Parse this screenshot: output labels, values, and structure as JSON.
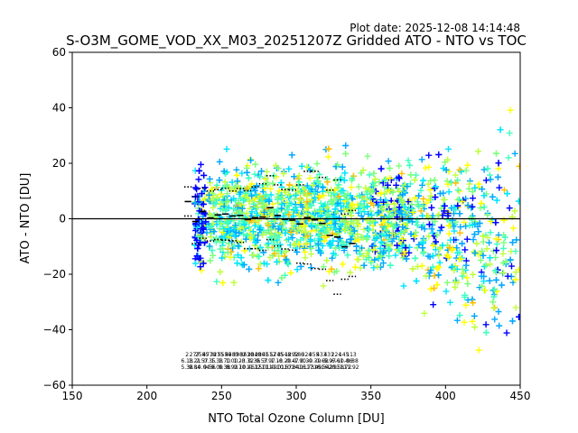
{
  "plot_date": "Plot date: 2025-12-08 14:14:48",
  "chart_data": {
    "type": "scatter",
    "title": "S-O3M_GOME_VOD_XX_M03_20251207Z Gridded ATO - NTO vs TOC",
    "xlabel": "NTO Total Ozone Column [DU]",
    "ylabel": "ATO - NTO [DU]",
    "xlim": [
      150,
      450
    ],
    "ylim": [
      -60,
      60
    ],
    "xticks": [
      150,
      200,
      250,
      300,
      350,
      400,
      450
    ],
    "yticks": [
      -60,
      -40,
      -20,
      0,
      20,
      40,
      60
    ],
    "zero_line": 0,
    "marker": "+",
    "colors": [
      "#0000ff",
      "#00a8ff",
      "#00e5ff",
      "#40ffc0",
      "#7dff7a",
      "#c0ff40",
      "#ffff00",
      "#ffc000"
    ],
    "bins": [
      {
        "x": 227.5,
        "count": "2",
        "mean": "6.18",
        "std": "5.38",
        "median": 6.2,
        "p_hi": 11.5,
        "p_lo": 1.0
      },
      {
        "x": 232.5,
        "count": "277",
        "mean": "1.21",
        "std": "9.84",
        "median": -1.0,
        "p_hi": 8.0,
        "p_lo": -9.0
      },
      {
        "x": 237.5,
        "count": "2585",
        "mean": "2.57",
        "std": "10.04",
        "median": 2.6,
        "p_hi": 11.0,
        "p_lo": -7.0
      },
      {
        "x": 242.5,
        "count": "4778",
        "mean": "0.35",
        "std": "9.56",
        "median": 0.3,
        "p_hi": 10.0,
        "p_lo": -8.0
      },
      {
        "x": 247.5,
        "count": "3275",
        "mean": "1.38",
        "std": "9.09",
        "median": 1.4,
        "p_hi": 10.5,
        "p_lo": -7.5
      },
      {
        "x": 252.5,
        "count": "5559",
        "mean": "1.70",
        "std": "9.38",
        "median": 1.7,
        "p_hi": 11.0,
        "p_lo": -7.7
      },
      {
        "x": 257.5,
        "count": "4483",
        "mean": "1.00",
        "std": "8.93",
        "median": 1.0,
        "p_hi": 10.0,
        "p_lo": -7.9
      },
      {
        "x": 262.5,
        "count": "3982",
        "mean": "1.23",
        "std": "9.70",
        "median": 1.2,
        "p_hi": 10.9,
        "p_lo": -8.5
      },
      {
        "x": 267.5,
        "count": "3630",
        "mean": "-0.32",
        "std": "10.46",
        "median": -0.3,
        "p_hi": 10.1,
        "p_lo": -10.8
      },
      {
        "x": 272.5,
        "count": "2840",
        "mean": "0.36",
        "std": "11.15",
        "median": 0.4,
        "p_hi": 11.5,
        "p_lo": -10.8
      },
      {
        "x": 277.5,
        "count": "2801",
        "mean": "0.57",
        "std": "12.01",
        "median": 0.6,
        "p_hi": 12.6,
        "p_lo": -11.4
      },
      {
        "x": 282.5,
        "count": "4512",
        "mean": "3.97",
        "std": "11.49",
        "median": 4.0,
        "p_hi": 15.5,
        "p_lo": -7.5
      },
      {
        "x": 287.5,
        "count": "5745",
        "mean": "1.18",
        "std": "11.01",
        "median": 1.2,
        "p_hi": 12.2,
        "p_lo": -9.8
      },
      {
        "x": 292.5,
        "count": "3548",
        "mean": "-0.20",
        "std": "10.67",
        "median": -0.2,
        "p_hi": 10.5,
        "p_lo": -10.9
      },
      {
        "x": 297.5,
        "count": "1292",
        "mean": "-0.47",
        "std": "10.84",
        "median": -0.5,
        "p_hi": 10.4,
        "p_lo": -11.3
      },
      {
        "x": 302.5,
        "count": "586",
        "mean": "-1.90",
        "std": "14.11",
        "median": -1.9,
        "p_hi": 12.2,
        "p_lo": -16.0
      },
      {
        "x": 307.5,
        "count": "324",
        "mean": "0.39",
        "std": "16.73",
        "median": 0.4,
        "p_hi": 17.1,
        "p_lo": -16.3
      },
      {
        "x": 312.5,
        "count": "355",
        "mean": "-0.39",
        "std": "17.49",
        "median": -0.4,
        "p_hi": 17.1,
        "p_lo": -17.9
      },
      {
        "x": 317.5,
        "count": "433",
        "mean": "-1.68",
        "std": "16.54",
        "median": -1.7,
        "p_hi": 14.9,
        "p_lo": -18.2
      },
      {
        "x": 322.5,
        "count": "431",
        "mean": "-5.97",
        "std": "16.29",
        "median": -6.0,
        "p_hi": 10.3,
        "p_lo": -22.3
      },
      {
        "x": 327.5,
        "count": "224",
        "mean": "-6.61",
        "std": "20.58",
        "median": -6.6,
        "p_hi": 14.0,
        "p_lo": -27.2
      },
      {
        "x": 332.5,
        "count": "145",
        "mean": "-10.06",
        "std": "11.72",
        "median": -10.1,
        "p_hi": 1.7,
        "p_lo": -21.8
      },
      {
        "x": 337.5,
        "count": "113",
        "mean": "-8.88",
        "std": "11.92",
        "median": -8.9,
        "p_hi": 3.0,
        "p_lo": -20.8
      }
    ]
  }
}
